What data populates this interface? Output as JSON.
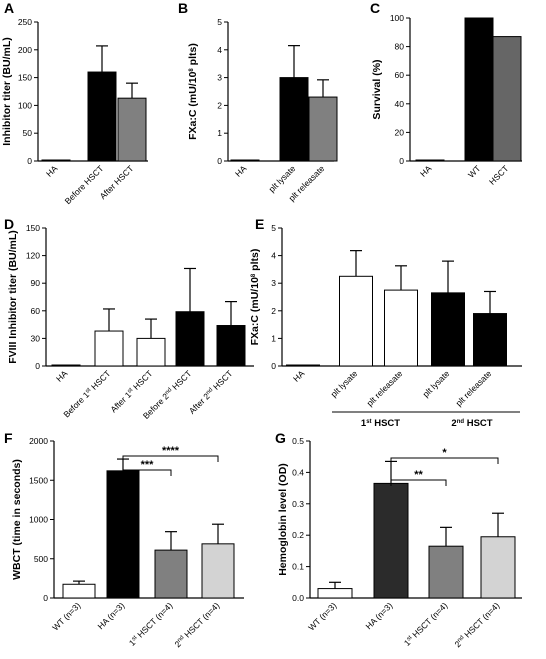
{
  "chart_data": [
    {
      "panel": "A",
      "type": "bar",
      "ylabel": "Inhibitor titer (BU/mL)",
      "ylim": [
        0,
        250
      ],
      "yticks": [
        0,
        50,
        100,
        150,
        200,
        250
      ],
      "categories": [
        "HA",
        "Before HSCT",
        "After HSCT"
      ],
      "values": [
        0,
        160,
        113
      ],
      "errors": [
        0,
        47,
        27
      ],
      "colors": [
        "#000000",
        "#000000",
        "#808080"
      ]
    },
    {
      "panel": "B",
      "type": "bar",
      "ylabel": "FXa:C (mU/10⁸ plts)",
      "ylim": [
        0,
        5
      ],
      "yticks": [
        0,
        1,
        2,
        3,
        4,
        5
      ],
      "categories": [
        "HA",
        "plt lysate",
        "plt releasate"
      ],
      "values": [
        0,
        3.0,
        2.3
      ],
      "errors": [
        0,
        1.15,
        0.62
      ],
      "colors": [
        "#000000",
        "#000000",
        "#808080"
      ]
    },
    {
      "panel": "C",
      "type": "bar",
      "ylabel": "Survival (%)",
      "ylim": [
        0,
        100
      ],
      "yticks": [
        0,
        20,
        40,
        60,
        80,
        100
      ],
      "categories": [
        "HA",
        "WT",
        "HSCT"
      ],
      "values": [
        0,
        100,
        87
      ],
      "errors": [
        0,
        0,
        0
      ],
      "colors": [
        "#000000",
        "#000000",
        "#666666"
      ]
    },
    {
      "panel": "D",
      "type": "bar",
      "ylabel": "FVIII Inhibitor titer (BU/mL)",
      "ylim": [
        0,
        150
      ],
      "yticks": [
        0,
        30,
        60,
        90,
        120,
        150
      ],
      "categories": [
        "HA",
        "Before 1st HSCT",
        "After 1st HSCT",
        "Before 2nd HSCT",
        "After 2nd HSCT"
      ],
      "values": [
        0,
        38,
        30,
        59,
        44
      ],
      "errors": [
        0,
        24,
        21,
        47,
        26
      ],
      "colors": [
        "#000000",
        "#ffffff",
        "#ffffff",
        "#000000",
        "#000000"
      ]
    },
    {
      "panel": "E",
      "type": "bar",
      "ylabel": "FXa:C (mU/10⁸ plts)",
      "ylim": [
        0,
        5
      ],
      "yticks": [
        0,
        1,
        2,
        3,
        4,
        5
      ],
      "categories": [
        "HA",
        "plt lysate",
        "plt releasate",
        "plt lysate",
        "plt releasate"
      ],
      "groups": [
        "1st HSCT",
        "2nd HSCT"
      ],
      "values": [
        0,
        3.25,
        2.75,
        2.65,
        1.9
      ],
      "errors": [
        0,
        0.93,
        0.88,
        1.15,
        0.8
      ],
      "colors": [
        "#000000",
        "#ffffff",
        "#ffffff",
        "#000000",
        "#000000"
      ]
    },
    {
      "panel": "F",
      "type": "bar",
      "ylabel": "WBCT (time in seconds)",
      "ylim": [
        0,
        2000
      ],
      "yticks": [
        0,
        500,
        1000,
        1500,
        2000
      ],
      "categories": [
        "WT (n=3)",
        "HA (n=3)",
        "1st HSCT (n=4)",
        "2nd HSCT (n=4)"
      ],
      "values": [
        175,
        1620,
        610,
        690
      ],
      "errors": [
        40,
        150,
        235,
        250
      ],
      "colors": [
        "#ffffff",
        "#000000",
        "#808080",
        "#d3d3d3"
      ],
      "significance": [
        {
          "from": "HA (n=3)",
          "to": "1st HSCT (n=4)",
          "label": "***"
        },
        {
          "from": "HA (n=3)",
          "to": "2nd HSCT (n=4)",
          "label": "****"
        }
      ]
    },
    {
      "panel": "G",
      "type": "bar",
      "ylabel": "Hemoglobin level (OD)",
      "ylim": [
        0,
        0.5
      ],
      "yticks": [
        0.0,
        0.1,
        0.2,
        0.3,
        0.4,
        0.5
      ],
      "categories": [
        "WT (n=3)",
        "HA (n=3)",
        "1st HSCT (n=4)",
        "2nd HSCT (n=4)"
      ],
      "values": [
        0.03,
        0.365,
        0.165,
        0.195
      ],
      "errors": [
        0.02,
        0.07,
        0.06,
        0.075
      ],
      "colors": [
        "#ffffff",
        "#2b2b2b",
        "#808080",
        "#d3d3d3"
      ],
      "significance": [
        {
          "from": "HA (n=3)",
          "to": "1st HSCT (n=4)",
          "label": "**"
        },
        {
          "from": "HA (n=3)",
          "to": "2nd HSCT (n=4)",
          "label": "*"
        }
      ]
    }
  ]
}
